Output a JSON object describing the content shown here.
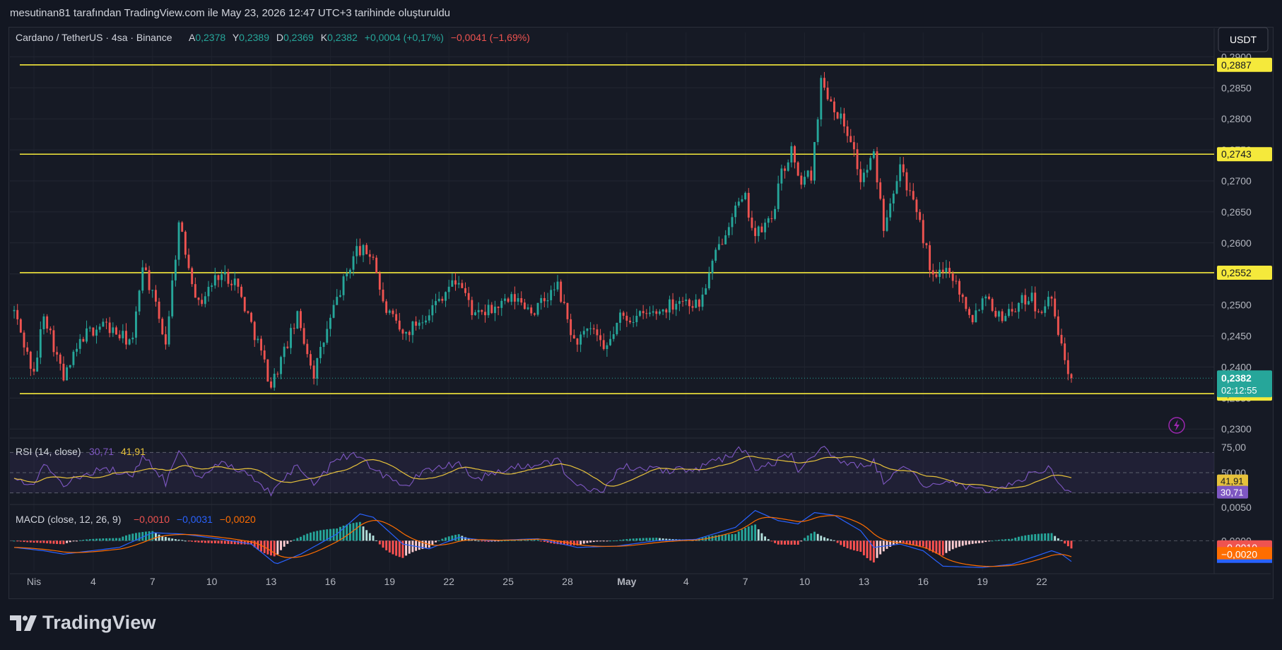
{
  "caption": "mesutinan81 tarafından TradingView.com ile May 23, 2026 12:47 UTC+3 tarihinde oluşturuldu",
  "header": {
    "symbol": "Cardano / TetherUS · 4sa · Binance",
    "open_label": "A",
    "open": "0,2378",
    "high_label": "Y",
    "high": "0,2389",
    "low_label": "D",
    "low": "0,2369",
    "close_label": "K",
    "close": "0,2382",
    "change": "+0,0004 (+0,17%)",
    "change2": "−0,0041 (−1,69%)"
  },
  "currency_button": "USDT",
  "logo_text": "TradingView",
  "colors": {
    "up": "#26a69a",
    "down": "#ef5350",
    "level": "#f5e93b",
    "rsi": "#7e57c2",
    "rsi_ma": "#e6c13b",
    "macd": "#2962ff",
    "signal": "#ff6d00"
  },
  "chart_data": [
    {
      "type": "candlestick",
      "title": "Cardano / TetherUS · 4sa · Binance",
      "x_ticks": [
        "Nis",
        "4",
        "7",
        "10",
        "13",
        "16",
        "19",
        "22",
        "25",
        "28",
        "May",
        "4",
        "7",
        "10",
        "13",
        "16",
        "19",
        "22"
      ],
      "y_ticks": [
        "0,2300",
        "0,2350",
        "0,2400",
        "0,2450",
        "0,2500",
        "0,2550",
        "0,2600",
        "0,2650",
        "0,2700",
        "0,2750",
        "0,2800",
        "0,2850",
        "0,2900"
      ],
      "ylim": [
        0.229,
        0.2905
      ],
      "grid": true,
      "horizontal_levels": [
        {
          "value": 0.2887,
          "label": "0,2887"
        },
        {
          "value": 0.2743,
          "label": "0,2743"
        },
        {
          "value": 0.2552,
          "label": "0,2552"
        },
        {
          "value": 0.2357,
          "label": "0,2357"
        }
      ],
      "last_price": {
        "value": 0.2382,
        "label": "0,2382",
        "countdown": "02:12:55"
      },
      "anchors": [
        [
          "Mar 31 00:00",
          0.249
        ],
        [
          "Apr 01 00:00",
          0.2385
        ],
        [
          "Apr 01 12:00",
          0.249
        ],
        [
          "Apr 02 12:00",
          0.238
        ],
        [
          "Apr 03 12:00",
          0.245
        ],
        [
          "Apr 04 12:00",
          0.247
        ],
        [
          "Apr 05 08:00",
          0.245
        ],
        [
          "Apr 06 00:00",
          0.244
        ],
        [
          "Apr 06 12:00",
          0.257
        ],
        [
          "Apr 07 16:00",
          0.244
        ],
        [
          "Apr 08 08:00",
          0.263
        ],
        [
          "Apr 09 08:00",
          0.25
        ],
        [
          "Apr 10 08:00",
          0.255
        ],
        [
          "Apr 11 04:00",
          0.254
        ],
        [
          "Apr 12 08:00",
          0.244
        ],
        [
          "Apr 13 00:00",
          0.237
        ],
        [
          "Apr 14 08:00",
          0.248
        ],
        [
          "Apr 15 04:00",
          0.239
        ],
        [
          "Apr 16 08:00",
          0.251
        ],
        [
          "Apr 17 08:00",
          0.259
        ],
        [
          "Apr 18 04:00",
          0.258
        ],
        [
          "Apr 18 16:00",
          0.25
        ],
        [
          "Apr 19 16:00",
          0.245
        ],
        [
          "Apr 21 00:00",
          0.249
        ],
        [
          "Apr 22 00:00",
          0.253
        ],
        [
          "Apr 22 12:00",
          0.254
        ],
        [
          "Apr 23 08:00",
          0.248
        ],
        [
          "Apr 25 08:00",
          0.251
        ],
        [
          "Apr 26 08:00",
          0.249
        ],
        [
          "Apr 27 12:00",
          0.253
        ],
        [
          "Apr 28 08:00",
          0.244
        ],
        [
          "Apr 29 08:00",
          0.246
        ],
        [
          "Apr 29 20:00",
          0.242
        ],
        [
          "Apr 30 16:00",
          0.248
        ],
        [
          "May 01 12:00",
          0.248
        ],
        [
          "May 02 16:00",
          0.249
        ],
        [
          "May 03 16:00",
          0.251
        ],
        [
          "May 04 16:00",
          0.25
        ],
        [
          "May 05 12:00",
          0.258
        ],
        [
          "May 06 08:00",
          0.265
        ],
        [
          "May 07 00:00",
          0.267
        ],
        [
          "May 07 12:00",
          0.261
        ],
        [
          "May 08 08:00",
          0.264
        ],
        [
          "May 08 20:00",
          0.271
        ],
        [
          "May 09 08:00",
          0.275
        ],
        [
          "May 09 16:00",
          0.27
        ],
        [
          "May 10 08:00",
          0.271
        ],
        [
          "May 10 20:00",
          0.286
        ],
        [
          "May 11 12:00",
          0.282
        ],
        [
          "May 12 08:00",
          0.277
        ],
        [
          "May 12 20:00",
          0.27
        ],
        [
          "May 13 12:00",
          0.274
        ],
        [
          "May 14 00:00",
          0.263
        ],
        [
          "May 14 20:00",
          0.273
        ],
        [
          "May 15 12:00",
          0.266
        ],
        [
          "May 16 00:00",
          0.261
        ],
        [
          "May 16 12:00",
          0.254
        ],
        [
          "May 17 08:00",
          0.256
        ],
        [
          "May 18 00:00",
          0.251
        ],
        [
          "May 18 12:00",
          0.248
        ],
        [
          "May 19 04:00",
          0.252
        ],
        [
          "May 19 20:00",
          0.248
        ],
        [
          "May 20 20:00",
          0.25
        ],
        [
          "May 21 12:00",
          0.252
        ],
        [
          "May 21 20:00",
          0.248
        ],
        [
          "May 22 08:00",
          0.252
        ],
        [
          "May 22 16:00",
          0.248
        ],
        [
          "May 23 00:00",
          0.243
        ],
        [
          "May 23 12:00",
          0.2382
        ]
      ]
    },
    {
      "type": "line",
      "title": "RSI (14, close)",
      "series": [
        {
          "name": "RSI",
          "last": "30,71"
        },
        {
          "name": "RSI MA",
          "last": "41,91"
        }
      ],
      "y_ticks": [
        "75,00",
        "50,00"
      ],
      "bands": [
        70,
        50,
        30
      ],
      "ylim": [
        20,
        80
      ],
      "anchors": [
        [
          "Mar 31 00:00",
          48
        ],
        [
          "Apr 01 00:00",
          36
        ],
        [
          "Apr 01 12:00",
          60
        ],
        [
          "Apr 02 12:00",
          38
        ],
        [
          "Apr 04 12:00",
          56
        ],
        [
          "Apr 06 00:00",
          44
        ],
        [
          "Apr 06 12:00",
          70
        ],
        [
          "Apr 07 16:00",
          40
        ],
        [
          "Apr 08 08:00",
          70
        ],
        [
          "Apr 09 08:00",
          46
        ],
        [
          "Apr 10 08:00",
          60
        ],
        [
          "Apr 12 08:00",
          42
        ],
        [
          "Apr 13 00:00",
          30
        ],
        [
          "Apr 14 08:00",
          58
        ],
        [
          "Apr 15 04:00",
          38
        ],
        [
          "Apr 16 08:00",
          64
        ],
        [
          "Apr 17 08:00",
          68
        ],
        [
          "Apr 18 16:00",
          48
        ],
        [
          "Apr 19 16:00",
          36
        ],
        [
          "Apr 21 00:00",
          54
        ],
        [
          "Apr 22 12:00",
          60
        ],
        [
          "Apr 23 08:00",
          44
        ],
        [
          "Apr 25 08:00",
          55
        ],
        [
          "Apr 27 12:00",
          62
        ],
        [
          "Apr 28 08:00",
          36
        ],
        [
          "Apr 29 20:00",
          34
        ],
        [
          "Apr 30 16:00",
          56
        ],
        [
          "May 02 16:00",
          52
        ],
        [
          "May 04 16:00",
          54
        ],
        [
          "May 06 08:00",
          68
        ],
        [
          "May 07 00:00",
          76
        ],
        [
          "May 07 12:00",
          52
        ],
        [
          "May 08 20:00",
          64
        ],
        [
          "May 09 08:00",
          68
        ],
        [
          "May 09 16:00",
          54
        ],
        [
          "May 10 20:00",
          75
        ],
        [
          "May 11 12:00",
          64
        ],
        [
          "May 12 20:00",
          56
        ],
        [
          "May 13 12:00",
          62
        ],
        [
          "May 14 00:00",
          40
        ],
        [
          "May 14 20:00",
          58
        ],
        [
          "May 16 00:00",
          40
        ],
        [
          "May 16 12:00",
          36
        ],
        [
          "May 17 08:00",
          44
        ],
        [
          "May 18 12:00",
          32
        ],
        [
          "May 19 20:00",
          34
        ],
        [
          "May 20 20:00",
          40
        ],
        [
          "May 21 12:00",
          52
        ],
        [
          "May 22 08:00",
          54
        ],
        [
          "May 23 00:00",
          38
        ],
        [
          "May 23 12:00",
          30.71
        ]
      ]
    },
    {
      "type": "bar",
      "title": "MACD (close, 12, 26, 9)",
      "series": [
        {
          "name": "Histogram",
          "last": "−0,0010"
        },
        {
          "name": "MACD",
          "last": "−0,0031"
        },
        {
          "name": "Signal",
          "last": "−0,0020"
        }
      ],
      "y_ticks": [
        "0,0050",
        "0,0000"
      ],
      "value_labels": [
        "−0,0010",
        "−0,0020"
      ],
      "ylim": [
        -0.0045,
        0.0052
      ],
      "anchors": [
        [
          "Mar 31 00:00",
          -0.001
        ],
        [
          "Apr 01 12:00",
          -0.0015
        ],
        [
          "Apr 02 12:00",
          -0.002
        ],
        [
          "Apr 05 08:00",
          -0.001
        ],
        [
          "Apr 07 00:00",
          0.0012
        ],
        [
          "Apr 08 12:00",
          0.001
        ],
        [
          "Apr 10 08:00",
          0.0003
        ],
        [
          "Apr 12 00:00",
          -0.0005
        ],
        [
          "Apr 13 06:00",
          -0.0035
        ],
        [
          "Apr 14 12:00",
          -0.002
        ],
        [
          "Apr 16 08:00",
          0.001
        ],
        [
          "Apr 17 12:00",
          0.004
        ],
        [
          "Apr 18 04:00",
          0.0035
        ],
        [
          "Apr 19 16:00",
          -0.0005
        ],
        [
          "Apr 21 00:00",
          -0.0012
        ],
        [
          "Apr 22 12:00",
          0.0005
        ],
        [
          "Apr 24 00:00",
          0.0
        ],
        [
          "Apr 26 12:00",
          0.0003
        ],
        [
          "Apr 28 12:00",
          -0.001
        ],
        [
          "Apr 30 12:00",
          -0.0008
        ],
        [
          "May 02 12:00",
          0.0
        ],
        [
          "May 04 12:00",
          0.0002
        ],
        [
          "May 06 12:00",
          0.002
        ],
        [
          "May 07 12:00",
          0.0045
        ],
        [
          "May 08 16:00",
          0.003
        ],
        [
          "May 09 16:00",
          0.0025
        ],
        [
          "May 10 12:00",
          0.0042
        ],
        [
          "May 11 12:00",
          0.0038
        ],
        [
          "May 12 20:00",
          0.0015
        ],
        [
          "May 13 12:00",
          -0.001
        ],
        [
          "May 14 20:00",
          -0.0005
        ],
        [
          "May 16 00:00",
          -0.0015
        ],
        [
          "May 17 00:00",
          -0.0038
        ],
        [
          "May 19 00:00",
          -0.004
        ],
        [
          "May 20 12:00",
          -0.0035
        ],
        [
          "May 21 12:00",
          -0.0025
        ],
        [
          "May 22 12:00",
          -0.0015
        ],
        [
          "May 23 00:00",
          -0.002
        ],
        [
          "May 23 12:00",
          -0.0031
        ]
      ]
    }
  ]
}
